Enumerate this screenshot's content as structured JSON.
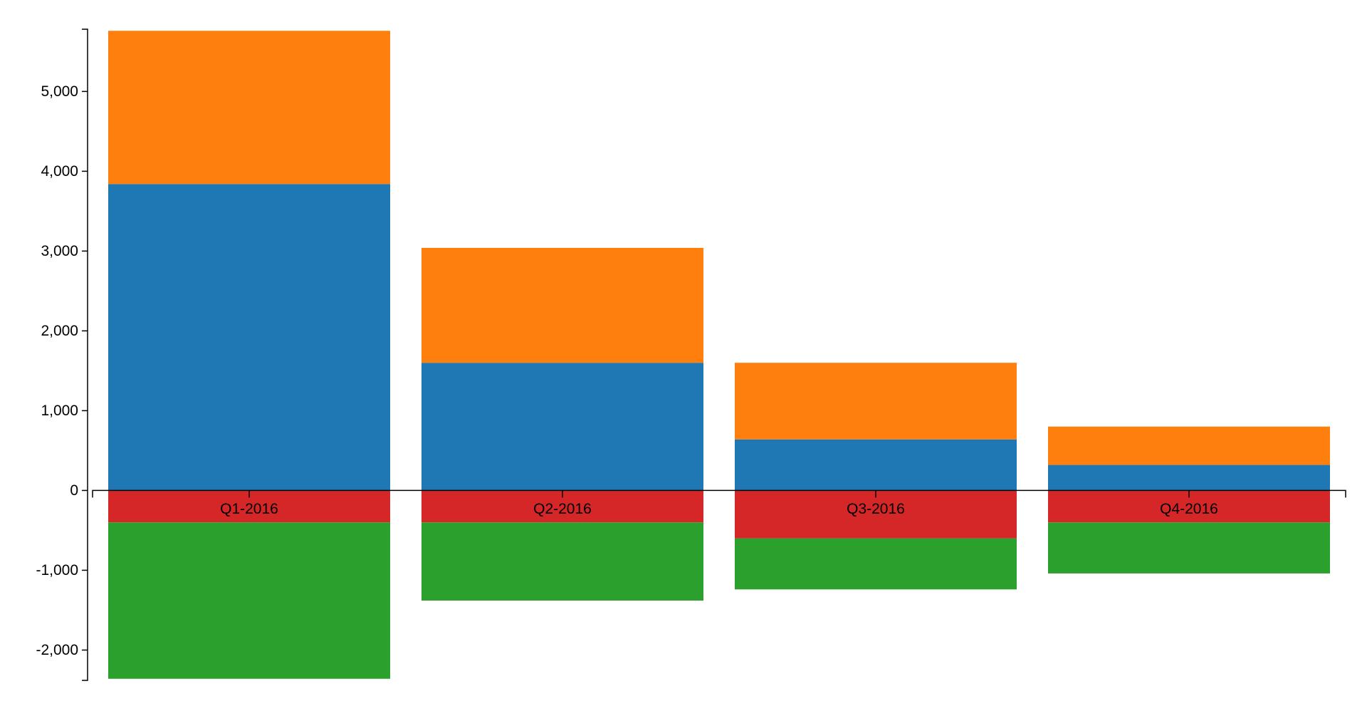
{
  "chart_data": {
    "type": "bar",
    "stacked": true,
    "diverging": true,
    "title": "",
    "xlabel": "",
    "ylabel": "",
    "categories": [
      "Q1-2016",
      "Q2-2016",
      "Q3-2016",
      "Q4-2016"
    ],
    "ylim": [
      -2380,
      5780
    ],
    "yticks": [
      -2000,
      -1000,
      0,
      1000,
      2000,
      3000,
      4000,
      5000
    ],
    "ytick_labels": [
      "-2,000",
      "-1,000",
      "0",
      "1,000",
      "2,000",
      "3,000",
      "4,000",
      "5,000"
    ],
    "grid": false,
    "legend": "none",
    "series": [
      {
        "color": "#1f77b4",
        "values": [
          3840,
          1600,
          640,
          320
        ]
      },
      {
        "color": "#ff7f0e",
        "values": [
          1920,
          1440,
          960,
          480
        ]
      },
      {
        "color": "#d62728",
        "values": [
          -400,
          -400,
          -600,
          -400
        ]
      },
      {
        "color": "#2ca02c",
        "values": [
          -1960,
          -980,
          -640,
          -640
        ]
      }
    ]
  }
}
